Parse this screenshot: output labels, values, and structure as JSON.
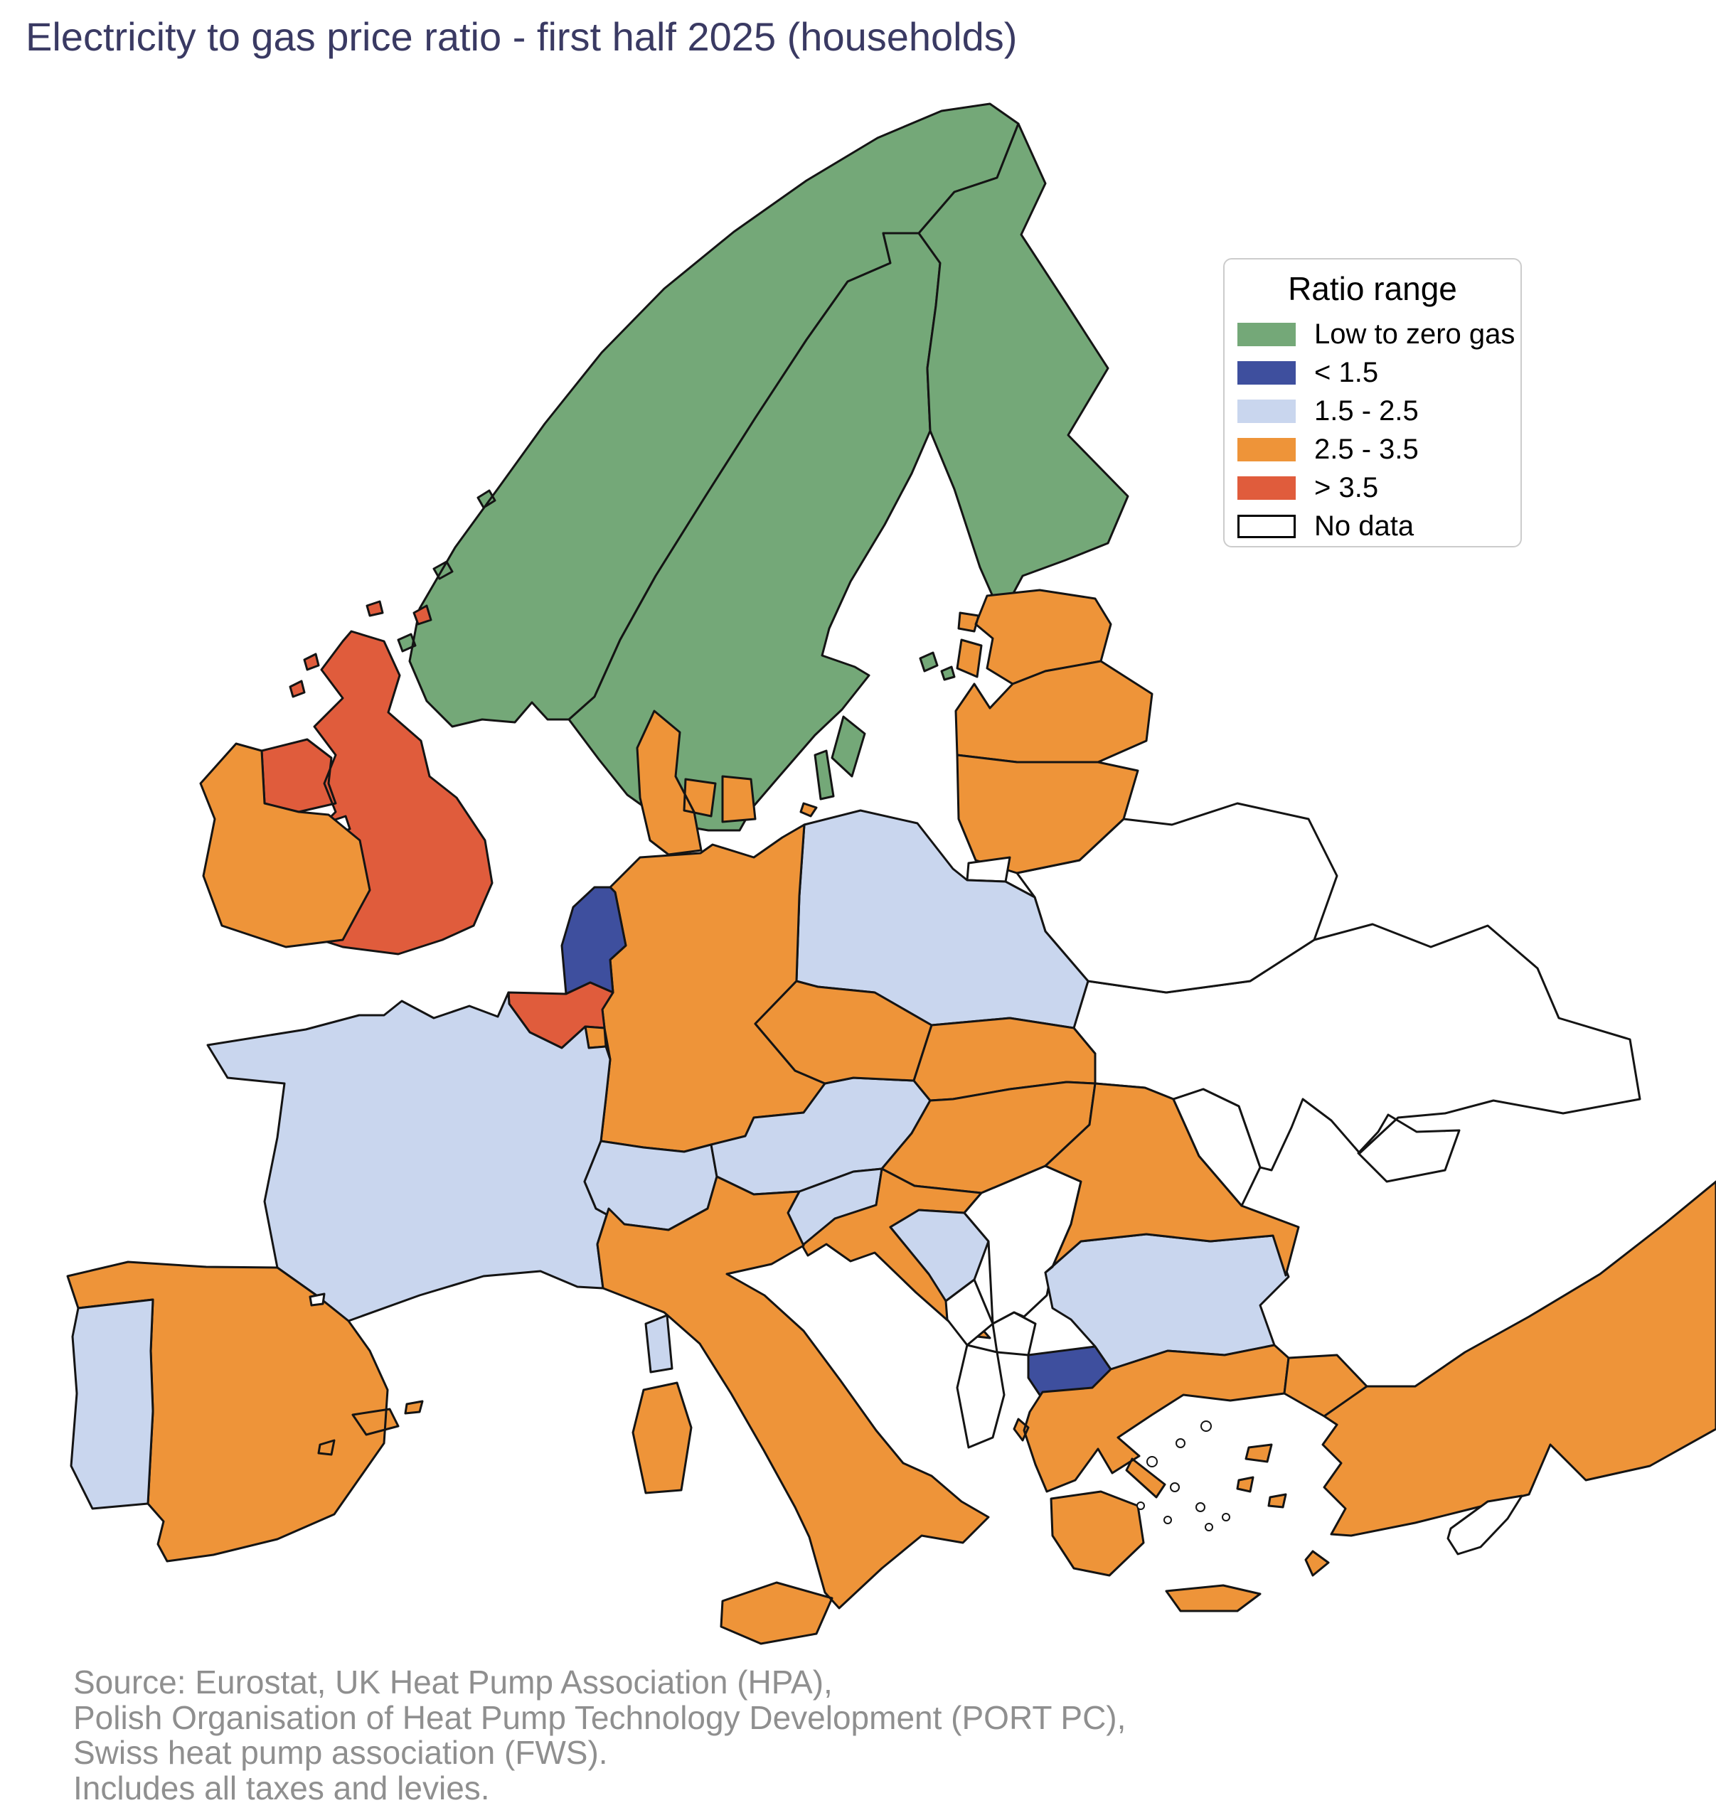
{
  "title": "Electricity to gas price ratio - first half 2025 (households)",
  "legend": {
    "title": "Ratio range",
    "items": [
      {
        "id": "low_zero_gas",
        "label": "Low to zero gas",
        "color": "#74A878",
        "outlined": false
      },
      {
        "id": "lt_1_5",
        "label": "< 1.5",
        "color": "#3E4F9E",
        "outlined": false
      },
      {
        "id": "r1_5_2_5",
        "label": "1.5 - 2.5",
        "color": "#C9D6EE",
        "outlined": false
      },
      {
        "id": "r2_5_3_5",
        "label": "2.5 - 3.5",
        "color": "#EE9439",
        "outlined": false
      },
      {
        "id": "gt_3_5",
        "label": "> 3.5",
        "color": "#E05C3C",
        "outlined": false
      },
      {
        "id": "no_data",
        "label": "No data",
        "color": "#FFFFFF",
        "outlined": true
      }
    ]
  },
  "source": {
    "line1": "Source: Eurostat, UK Heat Pump Association (HPA),",
    "line2": "Polish Organisation of Heat Pump Technology Development (PORT PC),",
    "line3": "Swiss heat pump association (FWS).",
    "line4": "Includes all taxes and levies."
  },
  "colors": {
    "border": "#141414",
    "background": "#ffffff",
    "title_text": "#3a3a63",
    "source_text": "#8f8f8f",
    "legend_border": "#cccccc"
  },
  "chart_data": {
    "type": "choropleth",
    "region": "Europe",
    "title": "Electricity to gas price ratio - first half 2025 (households)",
    "legend_title": "Ratio range",
    "categories": [
      "Low to zero gas",
      "< 1.5",
      "1.5 - 2.5",
      "2.5 - 3.5",
      "> 3.5",
      "No data"
    ],
    "countries": [
      {
        "id": "ukraine",
        "name": "Ukraine",
        "category": "no_data"
      },
      {
        "id": "belarus",
        "name": "Belarus",
        "category": "no_data"
      },
      {
        "id": "norway",
        "name": "Norway",
        "category": "low_zero_gas"
      },
      {
        "id": "sweden",
        "name": "Sweden",
        "category": "low_zero_gas"
      },
      {
        "id": "finland",
        "name": "Finland",
        "category": "low_zero_gas"
      },
      {
        "id": "estonia",
        "name": "Estonia",
        "category": "r2_5_3_5"
      },
      {
        "id": "latvia",
        "name": "Latvia",
        "category": "r2_5_3_5"
      },
      {
        "id": "lithuania",
        "name": "Lithuania",
        "category": "r2_5_3_5"
      },
      {
        "id": "kaliningrad",
        "name": "Russia (Kaliningrad)",
        "category": "no_data"
      },
      {
        "id": "poland",
        "name": "Poland",
        "category": "r1_5_2_5"
      },
      {
        "id": "germany",
        "name": "Germany",
        "category": "r2_5_3_5"
      },
      {
        "id": "denmark",
        "name": "Denmark",
        "category": "r2_5_3_5"
      },
      {
        "id": "netherlands",
        "name": "Netherlands",
        "category": "lt_1_5"
      },
      {
        "id": "belgium",
        "name": "Belgium",
        "category": "gt_3_5"
      },
      {
        "id": "luxembourg",
        "name": "Luxembourg",
        "category": "r2_5_3_5"
      },
      {
        "id": "france",
        "name": "France",
        "category": "r1_5_2_5"
      },
      {
        "id": "spain",
        "name": "Spain",
        "category": "r2_5_3_5"
      },
      {
        "id": "portugal",
        "name": "Portugal",
        "category": "r1_5_2_5"
      },
      {
        "id": "andorra",
        "name": "Andorra",
        "category": "no_data"
      },
      {
        "id": "united-kingdom",
        "name": "United Kingdom",
        "category": "gt_3_5"
      },
      {
        "id": "isle-of-man",
        "name": "Isle of Man",
        "category": "no_data"
      },
      {
        "id": "ireland",
        "name": "Ireland",
        "category": "r2_5_3_5"
      },
      {
        "id": "switzerland",
        "name": "Switzerland",
        "category": "r1_5_2_5"
      },
      {
        "id": "austria",
        "name": "Austria",
        "category": "r1_5_2_5"
      },
      {
        "id": "czechia",
        "name": "Czechia",
        "category": "r2_5_3_5"
      },
      {
        "id": "slovakia",
        "name": "Slovakia",
        "category": "r2_5_3_5"
      },
      {
        "id": "hungary",
        "name": "Hungary",
        "category": "r2_5_3_5"
      },
      {
        "id": "slovenia",
        "name": "Slovenia",
        "category": "r1_5_2_5"
      },
      {
        "id": "croatia",
        "name": "Croatia",
        "category": "r2_5_3_5"
      },
      {
        "id": "bosnia-herzegovina",
        "name": "Bosnia and Herzegovina",
        "category": "r1_5_2_5"
      },
      {
        "id": "serbia",
        "name": "Serbia",
        "category": "no_data"
      },
      {
        "id": "montenegro",
        "name": "Montenegro",
        "category": "no_data"
      },
      {
        "id": "kosovo",
        "name": "Kosovo",
        "category": "no_data"
      },
      {
        "id": "albania",
        "name": "Albania",
        "category": "no_data"
      },
      {
        "id": "north-macedonia",
        "name": "North Macedonia",
        "category": "lt_1_5"
      },
      {
        "id": "bulgaria",
        "name": "Bulgaria",
        "category": "r1_5_2_5"
      },
      {
        "id": "romania",
        "name": "Romania",
        "category": "r2_5_3_5"
      },
      {
        "id": "moldova",
        "name": "Moldova",
        "category": "no_data"
      },
      {
        "id": "greece",
        "name": "Greece",
        "category": "r2_5_3_5"
      },
      {
        "id": "turkey",
        "name": "Turkey",
        "category": "r2_5_3_5"
      },
      {
        "id": "cyprus",
        "name": "Cyprus",
        "category": "no_data"
      },
      {
        "id": "italy",
        "name": "Italy",
        "category": "r2_5_3_5"
      }
    ]
  }
}
